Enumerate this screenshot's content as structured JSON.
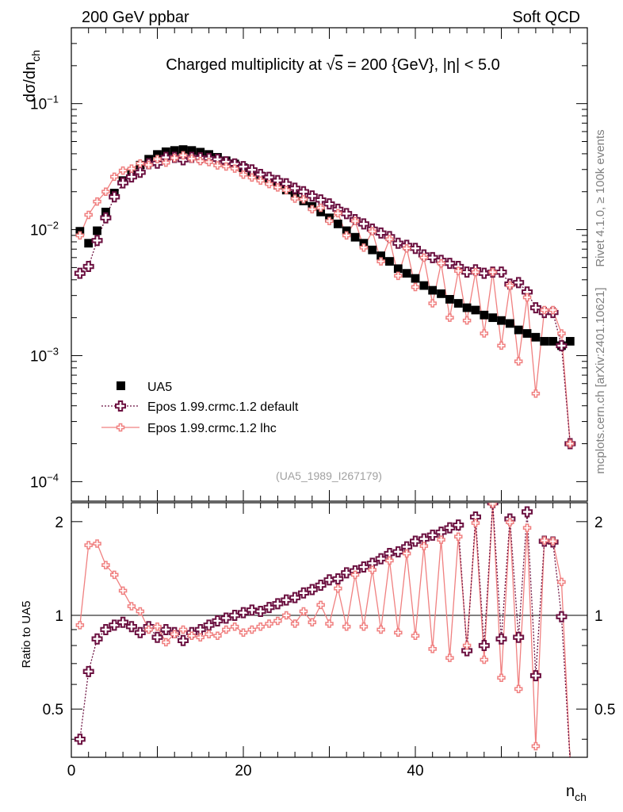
{
  "header": {
    "left": "200 GeV ppbar",
    "right": "Soft QCD"
  },
  "side_labels": {
    "rivet": "Rivet 4.1.0, ≥ 100k events",
    "mcplots": "mcplots.cern.ch [arXiv:2401.10621]"
  },
  "chart_data": {
    "type": "scatter",
    "title_prefix": "Charged multiplicity at ",
    "title_sqrt": "√",
    "title_s": "s",
    "title_suffix": " = 200 {GeV}, |η| < 5.0",
    "ylabel_main": "dσ/dn",
    "ylabel_main_sub": "ch",
    "ylabel_ratio": "Ratio to UA5",
    "xlabel": "n",
    "xlabel_sub": "ch",
    "analysis_id": "(UA5_1989_I267179)",
    "xlim": [
      0,
      60
    ],
    "ylim_main": [
      7e-05,
      0.4
    ],
    "ylim_ratio": [
      0.35,
      2.3
    ],
    "main_yticks": [
      {
        "base": "10",
        "exp": "−1"
      },
      {
        "base": "10",
        "exp": "−2"
      },
      {
        "base": "10",
        "exp": "−3"
      },
      {
        "base": "10",
        "exp": "−4"
      }
    ],
    "main_ytick_values": [
      0.1,
      0.01,
      0.001,
      0.0001
    ],
    "ratio_ytick_labels": [
      "2",
      "1",
      "0.5"
    ],
    "ratio_ytick_values": [
      2,
      1,
      0.5
    ],
    "xtick_labels": [
      "0",
      "20",
      "40"
    ],
    "xtick_values": [
      0,
      20,
      40
    ],
    "colors": {
      "data": "#000000",
      "default": "#6b1040",
      "lhc": "#f08080"
    },
    "legend": [
      {
        "label": "UA5"
      },
      {
        "label": "Epos 1.99.crmc.1.2 default"
      },
      {
        "label": "Epos 1.99.crmc.1.2 lhc"
      }
    ],
    "series": [
      {
        "name": "UA5",
        "x": [
          1,
          2,
          3,
          4,
          5,
          6,
          7,
          8,
          9,
          10,
          11,
          12,
          13,
          14,
          15,
          16,
          17,
          18,
          19,
          20,
          21,
          22,
          23,
          24,
          25,
          26,
          27,
          28,
          29,
          30,
          31,
          32,
          33,
          34,
          35,
          36,
          37,
          38,
          39,
          40,
          41,
          42,
          43,
          44,
          45,
          46,
          47,
          48,
          49,
          50,
          51,
          52,
          53,
          54,
          55,
          56,
          57,
          58
        ],
        "values": [
          0.0097,
          0.0078,
          0.0098,
          0.0138,
          0.0195,
          0.0245,
          0.0285,
          0.0325,
          0.0362,
          0.0395,
          0.0415,
          0.0425,
          0.0432,
          0.0425,
          0.0412,
          0.0395,
          0.0375,
          0.0352,
          0.0332,
          0.031,
          0.0288,
          0.0266,
          0.0245,
          0.0225,
          0.0206,
          0.0187,
          0.0169,
          0.0153,
          0.0138,
          0.0124,
          0.0111,
          0.0098,
          0.0087,
          0.0078,
          0.0069,
          0.0062,
          0.0056,
          0.0049,
          0.0045,
          0.0041,
          0.0036,
          0.0033,
          0.0031,
          0.0028,
          0.0026,
          0.0024,
          0.0023,
          0.0021,
          0.002,
          0.0019,
          0.0018,
          0.0016,
          0.0015,
          0.0014,
          0.0013,
          0.0013,
          0.0012,
          0.0013
        ]
      },
      {
        "name": "Epos 1.99.crmc.1.2 default",
        "x": [
          1,
          2,
          3,
          4,
          5,
          6,
          7,
          8,
          9,
          10,
          11,
          12,
          13,
          14,
          15,
          16,
          17,
          18,
          19,
          20,
          21,
          22,
          23,
          24,
          25,
          26,
          27,
          28,
          29,
          30,
          31,
          32,
          33,
          34,
          35,
          36,
          37,
          38,
          39,
          40,
          41,
          42,
          43,
          44,
          45,
          46,
          47,
          48,
          49,
          50,
          51,
          52,
          53,
          54,
          55,
          56,
          57,
          58
        ],
        "ratio": [
          0.4,
          0.66,
          0.84,
          0.9,
          0.93,
          0.95,
          0.92,
          0.88,
          0.92,
          0.85,
          0.9,
          0.88,
          0.83,
          0.88,
          0.9,
          0.93,
          0.96,
          0.98,
          1.0,
          1.02,
          1.04,
          1.03,
          1.06,
          1.09,
          1.12,
          1.14,
          1.18,
          1.21,
          1.25,
          1.3,
          1.31,
          1.37,
          1.39,
          1.43,
          1.47,
          1.52,
          1.58,
          1.6,
          1.66,
          1.73,
          1.76,
          1.81,
          1.85,
          1.91,
          1.95,
          0.77,
          2.07,
          0.8,
          2.3,
          0.84,
          2.04,
          0.85,
          2.15,
          0.64,
          1.73,
          1.72,
          0.99,
          0.31
        ],
        "values": [
          0.0045,
          0.0051,
          0.0082,
          0.0124,
          0.0182,
          0.0235,
          0.0262,
          0.0285,
          0.0333,
          0.0337,
          0.0374,
          0.0374,
          0.0358,
          0.0374,
          0.0371,
          0.0367,
          0.0361,
          0.0345,
          0.0332,
          0.0316,
          0.0298,
          0.0274,
          0.026,
          0.0245,
          0.0231,
          0.0213,
          0.02,
          0.0185,
          0.0172,
          0.016,
          0.0145,
          0.0134,
          0.012,
          0.0111,
          0.0101,
          0.0094,
          0.0088,
          0.0078,
          0.0075,
          0.0071,
          0.0063,
          0.006,
          0.0057,
          0.0054,
          0.0051,
          0.0046,
          0.0048,
          0.0045,
          0.0046,
          0.0046,
          0.0037,
          0.0038,
          0.0032,
          0.0024,
          0.0022,
          0.0022,
          0.0012,
          0.0002
        ]
      },
      {
        "name": "Epos 1.99.crmc.1.2 lhc",
        "x": [
          1,
          2,
          3,
          4,
          5,
          6,
          7,
          8,
          9,
          10,
          11,
          12,
          13,
          14,
          15,
          16,
          17,
          18,
          19,
          20,
          21,
          22,
          23,
          24,
          25,
          26,
          27,
          28,
          29,
          30,
          31,
          32,
          33,
          34,
          35,
          36,
          37,
          38,
          39,
          40,
          41,
          42,
          43,
          44,
          45,
          46,
          47,
          48,
          49,
          50,
          51,
          52,
          53,
          54,
          55,
          56,
          57,
          58
        ],
        "ratio": [
          0.93,
          1.68,
          1.7,
          1.45,
          1.35,
          1.2,
          1.07,
          1.03,
          0.9,
          0.92,
          0.82,
          0.87,
          0.9,
          0.86,
          0.85,
          0.87,
          0.86,
          0.9,
          0.92,
          0.88,
          0.9,
          0.92,
          0.94,
          0.96,
          1.0,
          0.94,
          1.03,
          0.95,
          1.08,
          0.94,
          1.22,
          0.92,
          1.35,
          0.92,
          1.4,
          0.9,
          1.5,
          0.88,
          1.58,
          0.86,
          1.67,
          0.78,
          1.75,
          0.73,
          1.79,
          0.8,
          1.98,
          0.72,
          2.28,
          0.63,
          1.99,
          0.58,
          1.91,
          0.38,
          1.74,
          1.73,
          1.28,
          0.3
        ],
        "values": [
          0.009,
          0.0131,
          0.0167,
          0.02,
          0.0263,
          0.0294,
          0.0305,
          0.0335,
          0.0326,
          0.0363,
          0.034,
          0.037,
          0.0389,
          0.0366,
          0.035,
          0.0344,
          0.0323,
          0.0317,
          0.0305,
          0.0273,
          0.0259,
          0.0245,
          0.023,
          0.0216,
          0.0206,
          0.0176,
          0.0174,
          0.0145,
          0.0149,
          0.0117,
          0.0135,
          0.009,
          0.0117,
          0.0072,
          0.0097,
          0.0056,
          0.0084,
          0.0043,
          0.0071,
          0.0035,
          0.006,
          0.0026,
          0.0054,
          0.002,
          0.0047,
          0.0019,
          0.0046,
          0.0015,
          0.0046,
          0.0012,
          0.0036,
          0.0009,
          0.0029,
          0.0005,
          0.0023,
          0.0023,
          0.0015,
          0.0002
        ]
      }
    ]
  }
}
